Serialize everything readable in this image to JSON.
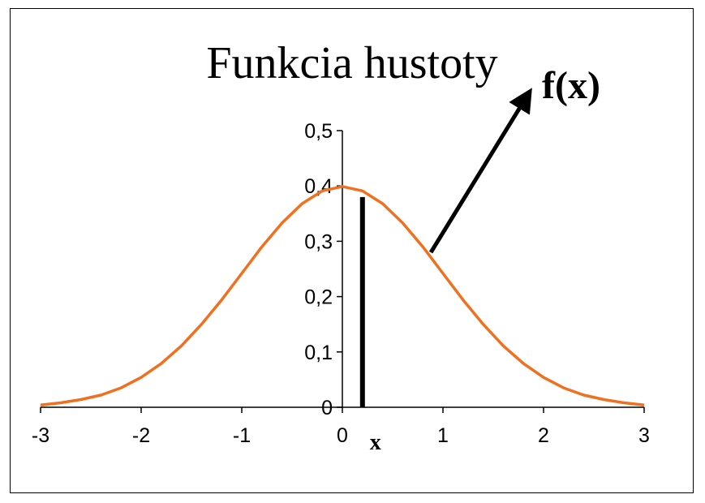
{
  "chart_data": {
    "type": "line",
    "title": "Funkcia hustoty",
    "xlabel": "",
    "ylabel": "",
    "xlim": [
      -3,
      3
    ],
    "ylim": [
      0,
      0.5
    ],
    "grid": false,
    "legend": "none",
    "x_ticks": [
      -3,
      -2,
      -1,
      0,
      1,
      2,
      3
    ],
    "x_tick_labels": [
      "-3",
      "-2",
      "-1",
      "0",
      "1",
      "2",
      "3"
    ],
    "y_ticks": [
      0,
      0.1,
      0.2,
      0.3,
      0.4,
      0.5
    ],
    "y_tick_labels": [
      "0",
      "0,1",
      "0,2",
      "0,3",
      "0,4",
      "0,5"
    ],
    "series": [
      {
        "color": "#f07020",
        "x": [
          -3,
          -2.8,
          -2.6,
          -2.4,
          -2.2,
          -2,
          -1.8,
          -1.6,
          -1.4,
          -1.2,
          -1,
          -0.8,
          -0.6,
          -0.4,
          -0.2,
          0,
          0.2,
          0.4,
          0.6,
          0.8,
          1,
          1.2,
          1.4,
          1.6,
          1.8,
          2,
          2.2,
          2.4,
          2.6,
          2.8,
          3
        ],
        "y": [
          0.004,
          0.008,
          0.014,
          0.022,
          0.035,
          0.054,
          0.079,
          0.111,
          0.15,
          0.194,
          0.242,
          0.29,
          0.333,
          0.368,
          0.391,
          0.399,
          0.391,
          0.368,
          0.333,
          0.29,
          0.242,
          0.194,
          0.15,
          0.111,
          0.079,
          0.054,
          0.035,
          0.022,
          0.014,
          0.008,
          0.004
        ]
      }
    ],
    "annotations": {
      "arrow_label": "f(x)",
      "x_marker_label": "x",
      "x_marker_value": 0.2,
      "x_marker_height": 0.38,
      "arrow_from": {
        "x": 0.88,
        "y": 0.28
      }
    }
  }
}
